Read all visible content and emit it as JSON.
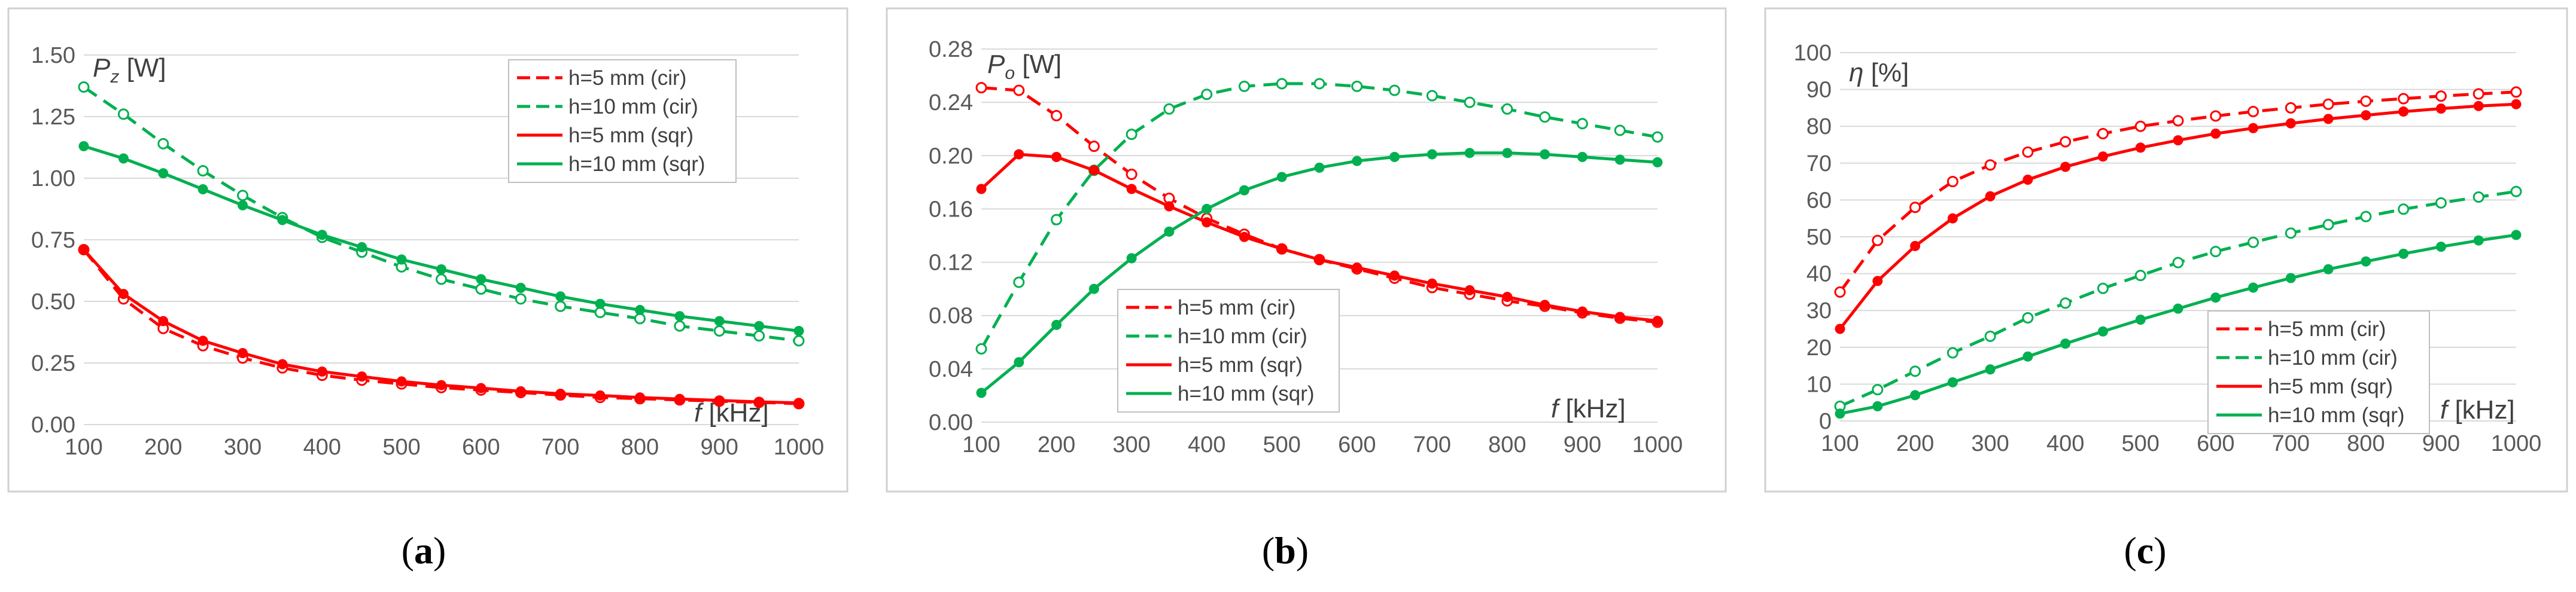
{
  "colors": {
    "red": "#ff0000",
    "green": "#00b050"
  },
  "x": [
    100,
    150,
    200,
    250,
    300,
    350,
    400,
    450,
    500,
    550,
    600,
    650,
    700,
    750,
    800,
    850,
    900,
    950,
    1000
  ],
  "chart_data": [
    {
      "type": "line",
      "caption_open": "(",
      "caption_letter": "a",
      "caption_close": ")",
      "ylabel_main": "P",
      "ylabel_sub": "z",
      "ylabel_unit": " [W]",
      "xlabel_main": "f",
      "xlabel_unit": " [kHz]",
      "xlim": [
        100,
        1000
      ],
      "ylim": [
        0,
        1.5
      ],
      "x_ticks": [
        "100",
        "200",
        "300",
        "400",
        "500",
        "600",
        "700",
        "800",
        "900",
        "1000"
      ],
      "y_ticks": [
        "0.00",
        "0.25",
        "0.50",
        "0.75",
        "1.00",
        "1.25",
        "1.50"
      ],
      "legend_position": "top-right",
      "series": [
        {
          "name": "h=5 mm (cir)",
          "color": "red",
          "dash": true,
          "values": [
            0.71,
            0.51,
            0.39,
            0.32,
            0.27,
            0.23,
            0.2,
            0.18,
            0.165,
            0.15,
            0.14,
            0.13,
            0.12,
            0.11,
            0.105,
            0.1,
            0.095,
            0.09,
            0.085
          ]
        },
        {
          "name": "h=10 mm (cir)",
          "color": "green",
          "dash": true,
          "values": [
            1.37,
            1.26,
            1.14,
            1.03,
            0.93,
            0.84,
            0.76,
            0.7,
            0.64,
            0.59,
            0.55,
            0.51,
            0.48,
            0.455,
            0.43,
            0.4,
            0.38,
            0.36,
            0.34
          ]
        },
        {
          "name": "h=5 mm (sqr)",
          "color": "red",
          "dash": false,
          "values": [
            0.71,
            0.53,
            0.42,
            0.34,
            0.29,
            0.245,
            0.215,
            0.195,
            0.175,
            0.16,
            0.148,
            0.135,
            0.125,
            0.118,
            0.11,
            0.104,
            0.098,
            0.092,
            0.088
          ]
        },
        {
          "name": "h=10 mm (sqr)",
          "color": "green",
          "dash": false,
          "values": [
            1.13,
            1.08,
            1.02,
            0.955,
            0.89,
            0.83,
            0.77,
            0.72,
            0.67,
            0.63,
            0.59,
            0.555,
            0.52,
            0.49,
            0.465,
            0.44,
            0.42,
            0.4,
            0.38
          ]
        }
      ]
    },
    {
      "type": "line",
      "caption_open": "(",
      "caption_letter": "b",
      "caption_close": ")",
      "ylabel_main": "P",
      "ylabel_sub": "o",
      "ylabel_unit": " [W]",
      "xlabel_main": "f",
      "xlabel_unit": " [kHz]",
      "xlim": [
        100,
        1000
      ],
      "ylim": [
        0,
        0.28
      ],
      "x_ticks": [
        "100",
        "200",
        "300",
        "400",
        "500",
        "600",
        "700",
        "800",
        "900",
        "1000"
      ],
      "y_ticks": [
        "0.00",
        "0.04",
        "0.08",
        "0.12",
        "0.16",
        "0.20",
        "0.24",
        "0.28"
      ],
      "legend_position": "bottom-center",
      "series": [
        {
          "name": "h=5 mm (cir)",
          "color": "red",
          "dash": true,
          "values": [
            0.251,
            0.249,
            0.23,
            0.207,
            0.186,
            0.168,
            0.153,
            0.141,
            0.13,
            0.122,
            0.115,
            0.108,
            0.101,
            0.096,
            0.091,
            0.087,
            0.082,
            0.078,
            0.075
          ]
        },
        {
          "name": "h=10 mm (cir)",
          "color": "green",
          "dash": true,
          "values": [
            0.055,
            0.105,
            0.152,
            0.189,
            0.216,
            0.235,
            0.246,
            0.252,
            0.254,
            0.254,
            0.252,
            0.249,
            0.245,
            0.24,
            0.235,
            0.229,
            0.224,
            0.219,
            0.214
          ]
        },
        {
          "name": "h=5 mm (sqr)",
          "color": "red",
          "dash": false,
          "values": [
            0.175,
            0.201,
            0.199,
            0.189,
            0.175,
            0.162,
            0.15,
            0.139,
            0.13,
            0.122,
            0.116,
            0.11,
            0.104,
            0.099,
            0.094,
            0.088,
            0.083,
            0.079,
            0.076
          ]
        },
        {
          "name": "h=10 mm (sqr)",
          "color": "green",
          "dash": false,
          "values": [
            0.022,
            0.045,
            0.073,
            0.1,
            0.123,
            0.143,
            0.16,
            0.174,
            0.184,
            0.191,
            0.196,
            0.199,
            0.201,
            0.202,
            0.202,
            0.201,
            0.199,
            0.197,
            0.195
          ]
        }
      ]
    },
    {
      "type": "line",
      "caption_open": "(",
      "caption_letter": "c",
      "caption_close": ")",
      "ylabel_main": "η",
      "ylabel_sub": "",
      "ylabel_unit": " [%]",
      "xlabel_main": "f",
      "xlabel_unit": " [kHz]",
      "xlim": [
        100,
        1000
      ],
      "ylim": [
        0,
        100
      ],
      "x_ticks": [
        "100",
        "200",
        "300",
        "400",
        "500",
        "600",
        "700",
        "800",
        "900",
        "1000"
      ],
      "y_ticks": [
        "0",
        "10",
        "20",
        "30",
        "40",
        "50",
        "60",
        "70",
        "80",
        "90",
        "100"
      ],
      "legend_position": "bottom-center",
      "series": [
        {
          "name": "h=5 mm (cir)",
          "color": "red",
          "dash": true,
          "values": [
            35,
            49,
            58,
            65,
            69.5,
            73,
            75.8,
            78,
            80,
            81.5,
            82.8,
            84,
            85,
            86,
            86.8,
            87.5,
            88.2,
            88.8,
            89.3
          ]
        },
        {
          "name": "h=10 mm (cir)",
          "color": "green",
          "dash": true,
          "values": [
            4,
            8.5,
            13.5,
            18.5,
            23,
            28,
            32,
            36,
            39.5,
            43,
            46,
            48.5,
            51,
            53.3,
            55.5,
            57.5,
            59.2,
            60.8,
            62.3
          ]
        },
        {
          "name": "h=5 mm (sqr)",
          "color": "red",
          "dash": false,
          "values": [
            25,
            38,
            47.5,
            55,
            61,
            65.5,
            69,
            71.8,
            74.2,
            76.2,
            78,
            79.5,
            80.8,
            82,
            83,
            84,
            84.8,
            85.5,
            86
          ]
        },
        {
          "name": "h=10 mm (sqr)",
          "color": "green",
          "dash": false,
          "values": [
            2,
            4,
            7,
            10.5,
            14,
            17.5,
            21,
            24.3,
            27.5,
            30.5,
            33.5,
            36.2,
            38.8,
            41.2,
            43.3,
            45.4,
            47.3,
            49,
            50.5
          ]
        }
      ]
    }
  ]
}
